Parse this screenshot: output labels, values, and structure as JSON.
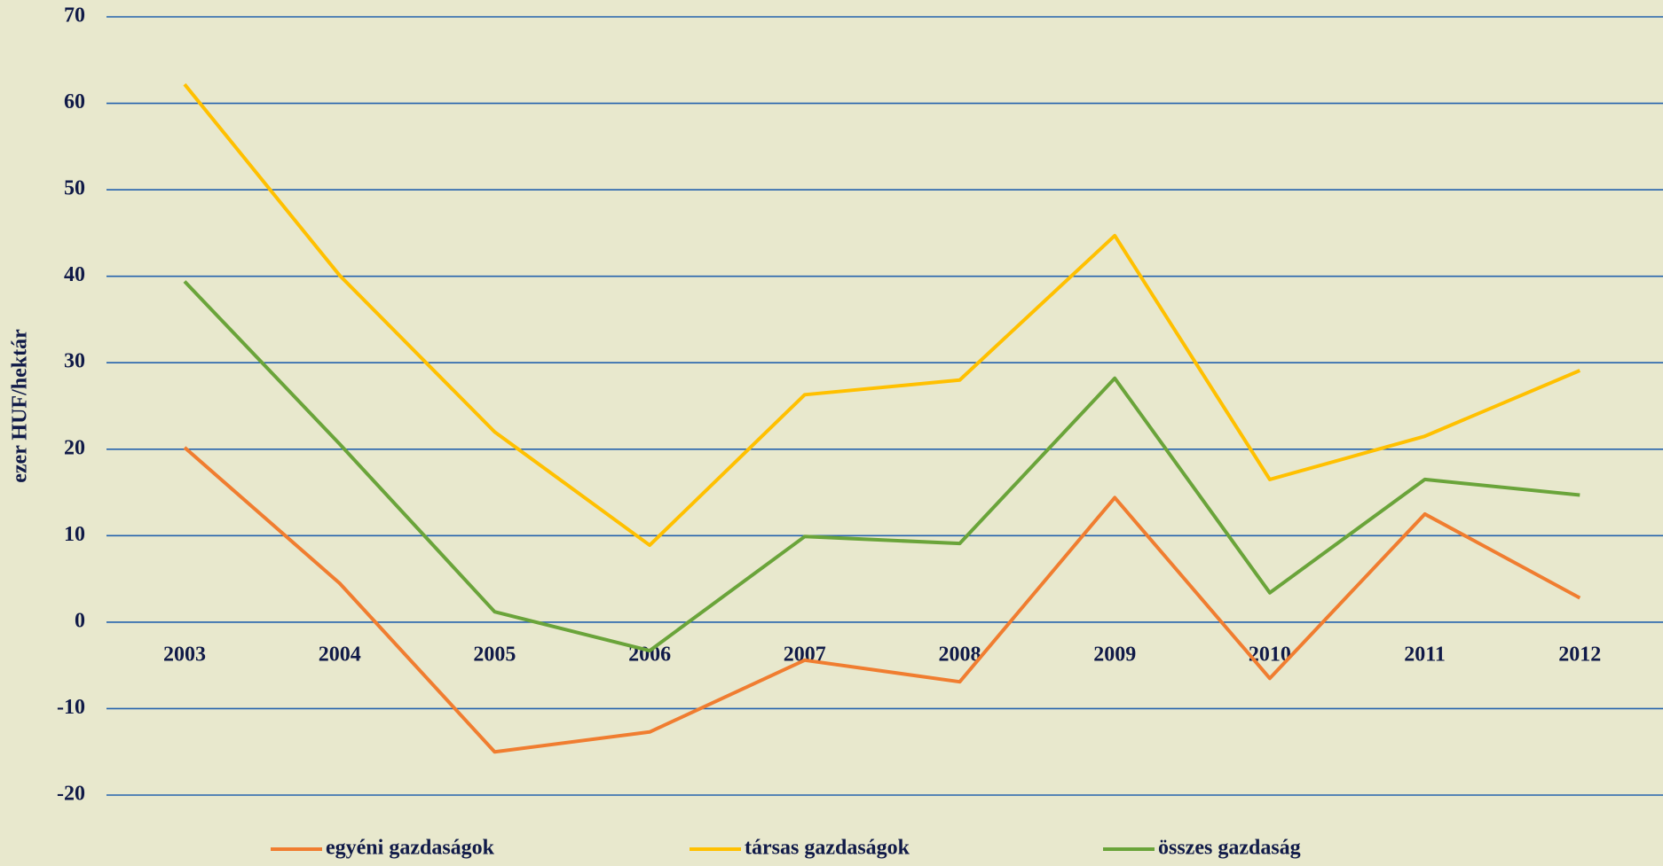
{
  "chart_data": {
    "type": "line",
    "y_label": "ezer HUF/hektár",
    "categories": [
      "2003",
      "2004",
      "2005",
      "2006",
      "2007",
      "2008",
      "2009",
      "2010",
      "2011",
      "2012"
    ],
    "series": [
      {
        "name": "egyéni gazdaságok",
        "color": "#f07d30",
        "values": [
          20.2,
          4.5,
          -15,
          -12.7,
          -4.4,
          -6.9,
          14.4,
          -6.5,
          12.5,
          2.8
        ]
      },
      {
        "name": "társas gazdaságok",
        "color": "#ffc000",
        "values": [
          62.2,
          40.1,
          22,
          8.9,
          26.3,
          28,
          44.7,
          16.5,
          21.5,
          29.1
        ]
      },
      {
        "name": "összes gazdaság",
        "color": "#6aa43a",
        "values": [
          39.4,
          20.6,
          1.2,
          -3.3,
          9.9,
          9.1,
          28.2,
          3.4,
          16.5,
          14.7
        ]
      }
    ],
    "ylim": [
      -20,
      70
    ],
    "yticks": [
      -20,
      -10,
      0,
      10,
      20,
      30,
      40,
      50,
      60,
      70
    ],
    "grid": true,
    "legend": "bottom"
  }
}
